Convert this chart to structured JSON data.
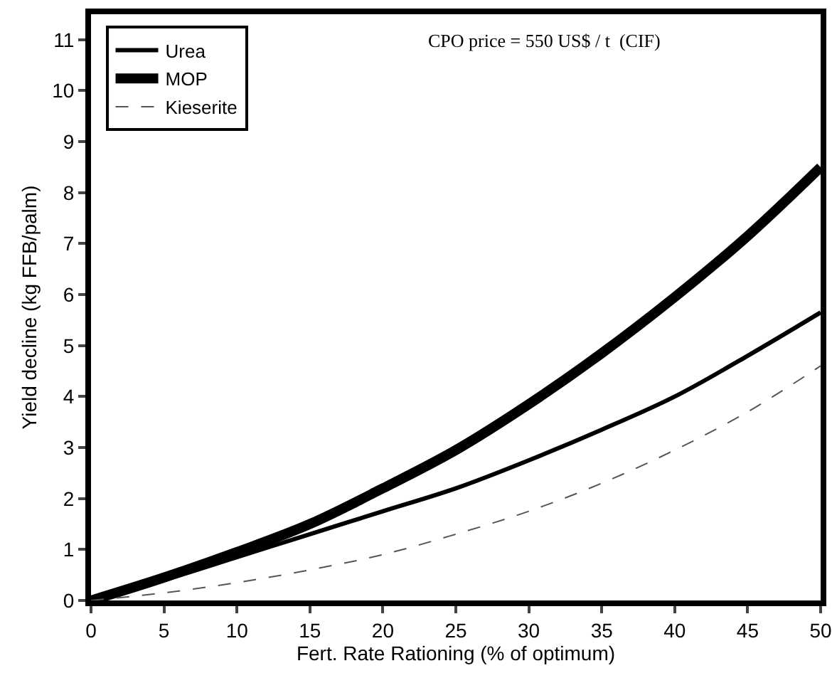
{
  "chart_data": {
    "type": "line",
    "xlabel": "Fert. Rate Rationing (% of optimum)",
    "ylabel": "Yield decline (kg FFB/palm)",
    "annotations": [
      "CPO price = 550 US$ / t  (CIF)"
    ],
    "x": [
      0,
      5,
      10,
      15,
      20,
      25,
      30,
      35,
      40,
      45,
      50
    ],
    "series": [
      {
        "name": "Urea",
        "color": "#000000",
        "line_style": "solid",
        "values": [
          0,
          0.4,
          0.85,
          1.3,
          1.75,
          2.2,
          2.75,
          3.35,
          4.0,
          4.8,
          5.65
        ]
      },
      {
        "name": "MOP",
        "color": "#000000",
        "line_style": "solid",
        "values": [
          0,
          0.45,
          0.95,
          1.5,
          2.2,
          2.95,
          3.85,
          4.85,
          5.95,
          7.15,
          8.5
        ]
      },
      {
        "name": "Kieserite",
        "color": "#555555",
        "line_style": "dashed",
        "values": [
          0,
          0.15,
          0.35,
          0.6,
          0.9,
          1.3,
          1.75,
          2.3,
          2.95,
          3.7,
          4.6
        ]
      }
    ],
    "xlim": [
      0,
      50
    ],
    "xticks": [
      0,
      5,
      10,
      15,
      20,
      25,
      30,
      35,
      40,
      45,
      50
    ],
    "ylim": [
      0,
      11.5
    ],
    "yticks": [
      0,
      1,
      2,
      3,
      4,
      5,
      6,
      7,
      8,
      9,
      10,
      11
    ],
    "grid": false,
    "legend": "top left",
    "marker": "none"
  }
}
